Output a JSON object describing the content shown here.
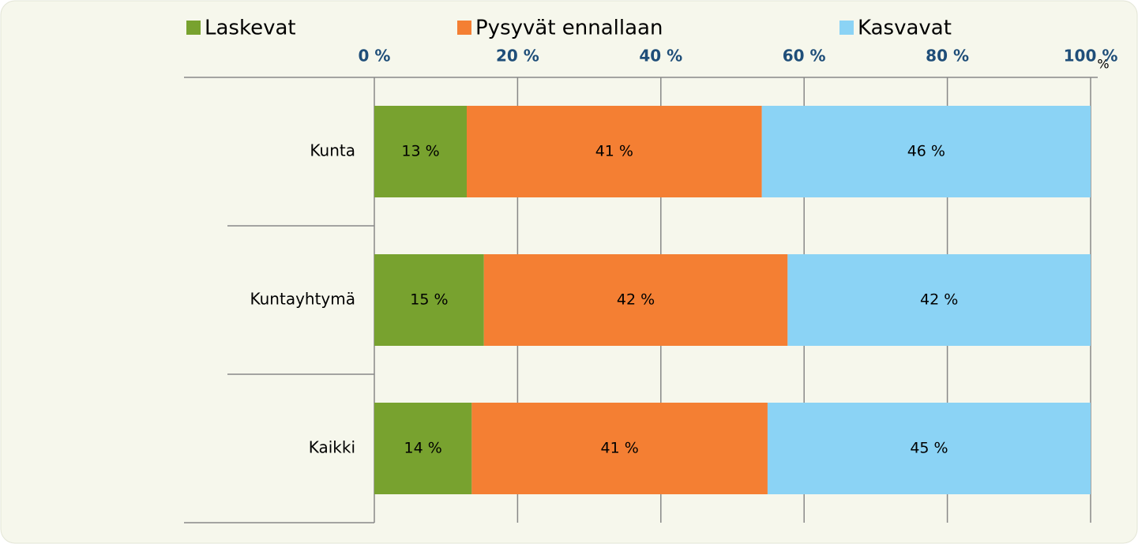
{
  "chart_data": {
    "type": "stacked_barh",
    "categories": [
      "Kunta",
      "Kuntayhtymä",
      "Kaikki"
    ],
    "series": [
      {
        "name": "Laskevat",
        "color": "#78a22f",
        "values": [
          12.9,
          15.3,
          13.6
        ],
        "value_labels": [
          "13 %",
          "15 %",
          "14 %"
        ]
      },
      {
        "name": "Pysyvät ennallaan",
        "color": "#f47f33",
        "values": [
          41.2,
          42.4,
          41.3
        ],
        "value_labels": [
          "41 %",
          "42 %",
          "41 %"
        ]
      },
      {
        "name": "Kasvavat",
        "color": "#8bd3f5",
        "values": [
          45.9,
          42.3,
          45.1
        ],
        "value_labels": [
          "46 %",
          "42 %",
          "45 %"
        ]
      }
    ],
    "xlim": [
      0,
      100
    ],
    "xticks": [
      {
        "value": 0,
        "label": "0 %"
      },
      {
        "value": 20,
        "label": "20 %"
      },
      {
        "value": 40,
        "label": "40 %"
      },
      {
        "value": 60,
        "label": "60 %"
      },
      {
        "value": 80,
        "label": "80 %"
      },
      {
        "value": 100,
        "label": "100 %"
      }
    ],
    "annotations": [
      "%"
    ],
    "grid": true,
    "legend": "top"
  }
}
